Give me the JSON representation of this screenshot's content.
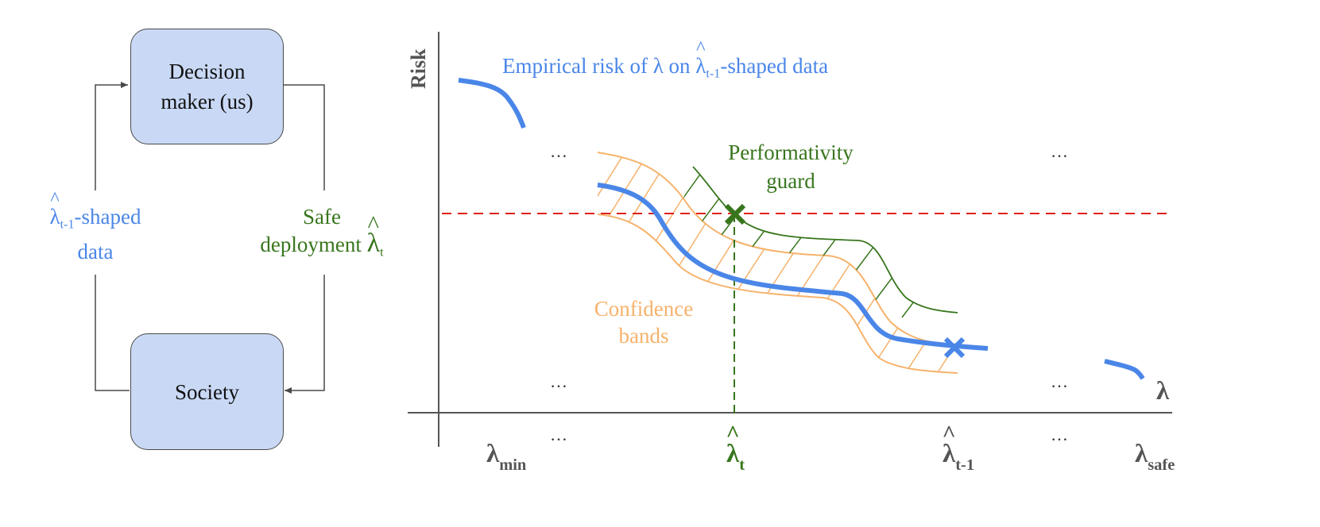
{
  "colors": {
    "blue": "#4a86e8",
    "green": "#38761d",
    "orange": "#f6b26b",
    "red": "#e0201b",
    "box_fill": "#c9d9f5"
  },
  "loop": {
    "top_box": "Decision maker (us)",
    "bottom_box": "Society",
    "left_label_lambda": "λ",
    "left_label_hat": "^",
    "left_label_sub": "t-1",
    "left_label_rest": "-shaped",
    "left_label_line2": "data",
    "right_label_line1": "Safe",
    "right_label_line2": "deployment ",
    "right_label_lambda": "λ",
    "right_label_hat": "^",
    "right_label_sub": "t"
  },
  "chart_data": {
    "type": "line",
    "ylabel": "Risk",
    "xlabel": "λ",
    "x_ticks": [
      {
        "lambda": "λ",
        "sub": "min",
        "hat": ""
      },
      {
        "lambda": "λ",
        "sub": "t",
        "hat": "^"
      },
      {
        "lambda": "λ",
        "sub": "t-1",
        "hat": "^"
      },
      {
        "lambda": "λ",
        "sub": "safe",
        "hat": ""
      }
    ],
    "ellipsis": "…",
    "annotations": {
      "empirical_prefix": "Empirical risk of λ on ",
      "empirical_lambda": "λ",
      "empirical_hat": "^",
      "empirical_sub": "t-1",
      "empirical_suffix": "-shaped data",
      "guard_line1": "Performativity",
      "guard_line2": "guard",
      "bands_line1": "Confidence",
      "bands_line2": "bands"
    },
    "threshold": "risk tolerance (dashed red line)",
    "series": [
      {
        "name": "Empirical risk",
        "color": "#4a86e8"
      },
      {
        "name": "Confidence bands",
        "color": "#f6b26b"
      },
      {
        "name": "Performativity guard",
        "color": "#38761d"
      }
    ]
  }
}
